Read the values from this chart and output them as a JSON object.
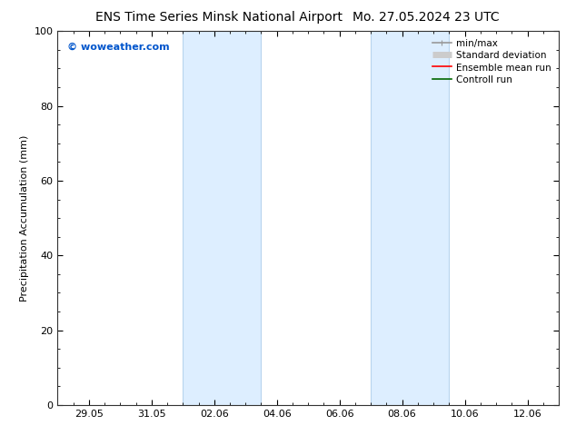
{
  "title_left": "ENS Time Series Minsk National Airport",
  "title_right": "Mo. 27.05.2024 23 UTC",
  "ylabel": "Precipitation Accumulation (mm)",
  "watermark": "© woweather.com",
  "watermark_color": "#0055cc",
  "ylim": [
    0,
    100
  ],
  "yticks": [
    0,
    20,
    40,
    60,
    80,
    100
  ],
  "xtick_labels": [
    "29.05",
    "31.05",
    "02.06",
    "04.06",
    "06.06",
    "08.06",
    "10.06",
    "12.06"
  ],
  "xtick_positions": [
    1,
    3,
    5,
    7,
    9,
    11,
    13,
    15
  ],
  "xlim": [
    0,
    16
  ],
  "shaded_bands": [
    {
      "x_start": 4.0,
      "x_end": 6.5
    },
    {
      "x_start": 10.0,
      "x_end": 12.5
    }
  ],
  "shaded_color": "#ddeeff",
  "shaded_edge_color": "#b8d4ee",
  "background_color": "#ffffff",
  "legend_items": [
    {
      "label": "min/max",
      "color": "#999999",
      "lw": 1.2,
      "style": "minmax"
    },
    {
      "label": "Standard deviation",
      "color": "#cccccc",
      "lw": 5,
      "style": "band"
    },
    {
      "label": "Ensemble mean run",
      "color": "#ff0000",
      "lw": 1.2,
      "style": "line"
    },
    {
      "label": "Controll run",
      "color": "#006600",
      "lw": 1.2,
      "style": "line"
    }
  ],
  "title_fontsize": 10,
  "tick_label_fontsize": 8,
  "ylabel_fontsize": 8,
  "legend_fontsize": 7.5,
  "watermark_fontsize": 8
}
